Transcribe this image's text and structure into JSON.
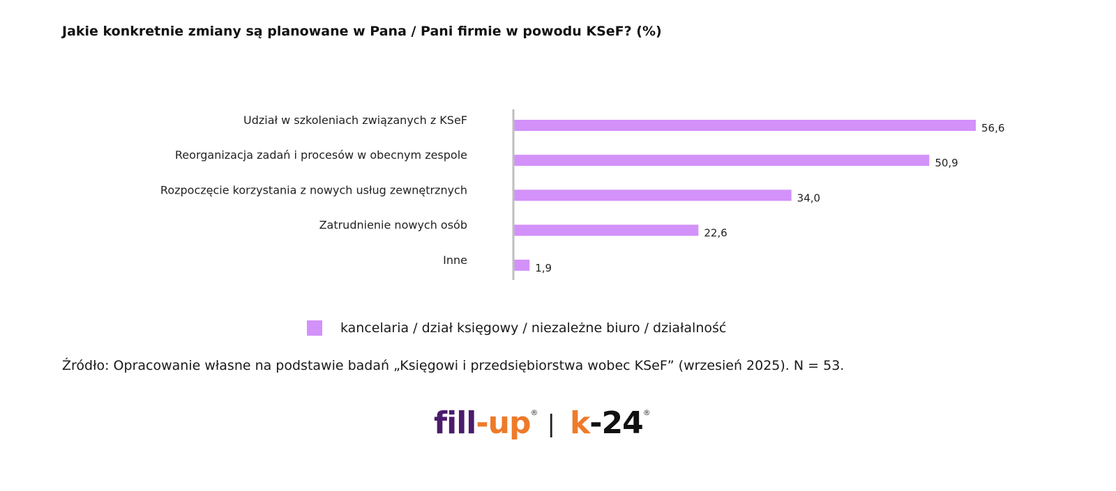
{
  "chart_data": {
    "type": "bar",
    "orientation": "horizontal",
    "title": "Jakie konkretnie zmiany są planowane w Pana / Pani firmie w powodu KSeF? (%)",
    "categories": [
      "Udział w szkoleniach związanych z KSeF",
      "Reorganizacja zadań i procesów w obecnym zespole",
      "Rozpoczęcie korzystania z nowych usług zewnętrznych",
      "Zatrudnienie nowych osób",
      "Inne"
    ],
    "series": [
      {
        "name": "kancelaria / dział księgowy / niezależne biuro / działalność",
        "values": [
          56.6,
          50.9,
          34.0,
          22.6,
          1.9
        ],
        "color": "#d391fa"
      }
    ],
    "value_labels": [
      "56,6",
      "50,9",
      "34,0",
      "22,6",
      "1,9"
    ],
    "xlim": [
      0,
      60
    ],
    "grid": false,
    "legend_position": "bottom"
  },
  "source": "Źródło: Opracowanie własne na podstawie badań „Księgowi i przedsiębiorstwa wobec KSeF” (wrzesień 2025). N = 53.",
  "logos": {
    "left": "fill-up",
    "right": "k-24",
    "separator": "|",
    "registered": "®"
  },
  "colors": {
    "bar": "#d391fa",
    "axis": "#bfbfbf",
    "logo_purple": "#4b1c6b",
    "logo_orange": "#ee7a2a"
  }
}
